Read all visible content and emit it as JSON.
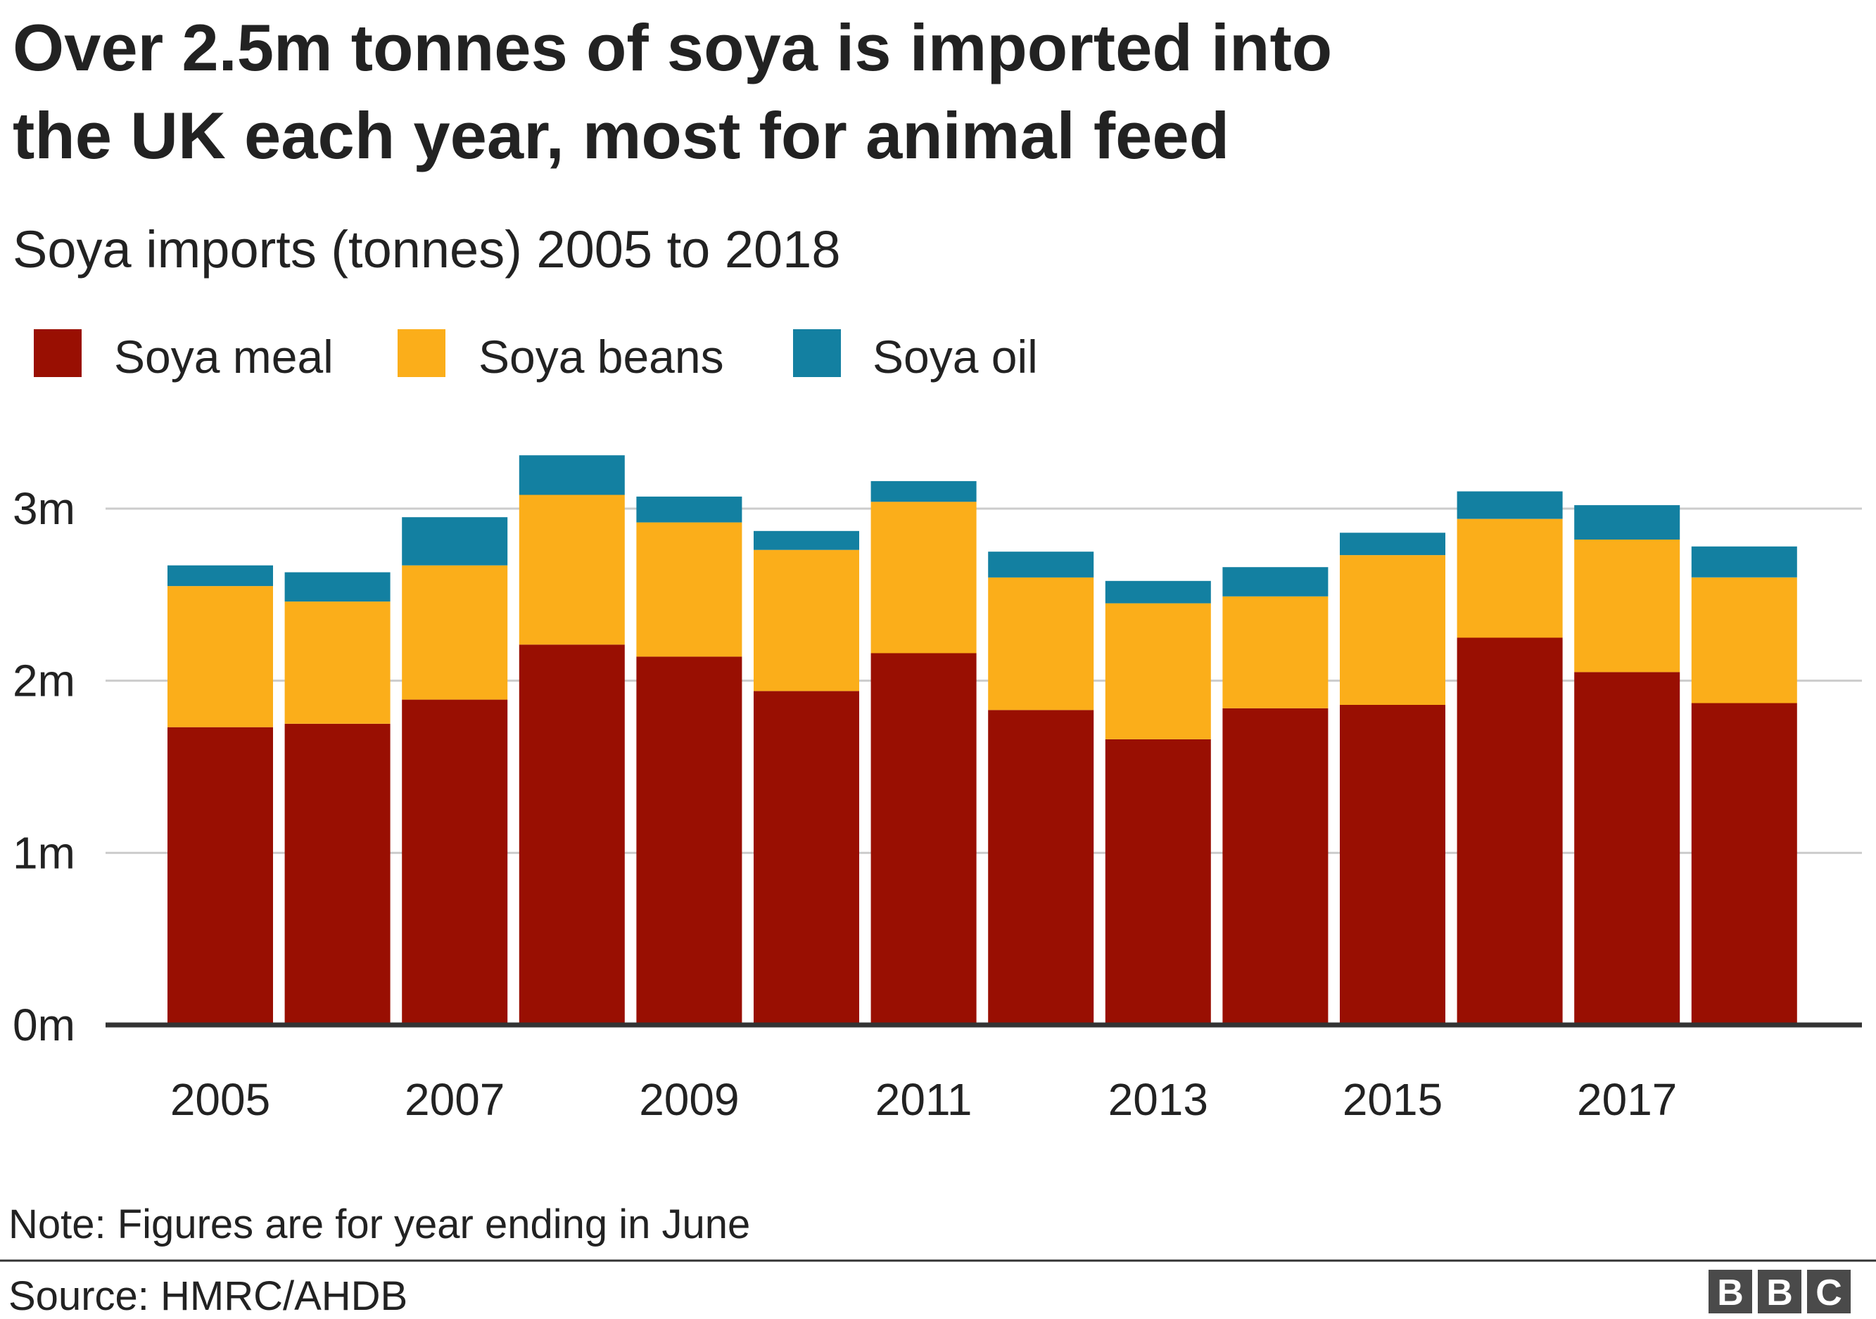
{
  "chart_data": {
    "type": "bar",
    "stacked": true,
    "title": "Over 2.5m tonnes of soya is imported into the UK each year, most for animal feed",
    "title_lines": [
      "Over 2.5m tonnes of soya is imported into",
      "the UK each year, most for animal feed"
    ],
    "subtitle": "Soya imports (tonnes) 2005 to 2018",
    "categories": [
      2005,
      2006,
      2007,
      2008,
      2009,
      2010,
      2011,
      2012,
      2013,
      2014,
      2015,
      2016,
      2017,
      2018
    ],
    "x_tick_labels": [
      "2005",
      "2007",
      "2009",
      "2011",
      "2013",
      "2015",
      "2017"
    ],
    "series": [
      {
        "name": "Soya meal",
        "color": "#990f02",
        "values": [
          1730000,
          1750000,
          1890000,
          2210000,
          2140000,
          1940000,
          2160000,
          1830000,
          1660000,
          1840000,
          1860000,
          2250000,
          2050000,
          1870000
        ]
      },
      {
        "name": "Soya beans",
        "color": "#fbae1a",
        "values": [
          820000,
          710000,
          780000,
          870000,
          780000,
          820000,
          880000,
          770000,
          790000,
          650000,
          870000,
          690000,
          770000,
          730000
        ]
      },
      {
        "name": "Soya oil",
        "color": "#1380a1",
        "values": [
          120000,
          170000,
          280000,
          230000,
          150000,
          110000,
          120000,
          150000,
          130000,
          170000,
          130000,
          160000,
          200000,
          180000
        ]
      }
    ],
    "y_ticks": [
      {
        "value": 0,
        "label": "0m"
      },
      {
        "value": 1000000,
        "label": "1m"
      },
      {
        "value": 2000000,
        "label": "2m"
      },
      {
        "value": 3000000,
        "label": "3m"
      }
    ],
    "ylim": [
      0,
      3400000
    ],
    "ylabel": "",
    "xlabel": "",
    "grid": true,
    "legend_position": "top-left",
    "note": "Note: Figures are for year ending in June",
    "source": "Source: HMRC/AHDB",
    "brand_letters": [
      "B",
      "B",
      "C"
    ]
  }
}
